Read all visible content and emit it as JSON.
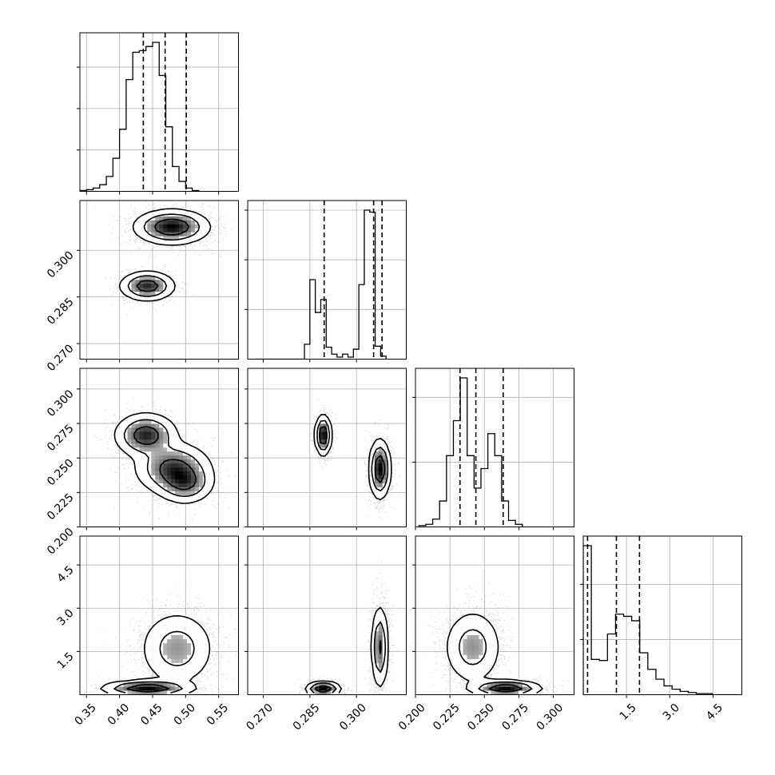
{
  "chart_data": {
    "type": "corner",
    "parameters": 4,
    "grid": true,
    "axes": [
      {
        "range": [
          0.34,
          0.58
        ],
        "ticks": [
          0.35,
          0.4,
          0.45,
          0.5,
          0.55
        ],
        "tick_labels": [
          "0.35",
          "0.40",
          "0.45",
          "0.50",
          "0.55"
        ]
      },
      {
        "range": [
          0.265,
          0.316
        ],
        "ticks": [
          0.27,
          0.285,
          0.3
        ],
        "tick_labels": [
          "0.270",
          "0.285",
          "0.300"
        ]
      },
      {
        "range": [
          0.2,
          0.315
        ],
        "ticks": [
          0.2,
          0.225,
          0.25,
          0.275,
          0.3
        ],
        "tick_labels": [
          "0.200",
          "0.225",
          "0.250",
          "0.275",
          "0.300"
        ]
      },
      {
        "range": [
          0.0,
          5.5
        ],
        "ticks": [
          1.5,
          3.0,
          4.5
        ],
        "tick_labels": [
          "1.5",
          "3.0",
          "4.5"
        ]
      }
    ],
    "histograms": [
      {
        "parameter": 0,
        "bin_start": 0.34,
        "bin_width": 0.01,
        "counts": [
          1,
          2,
          4,
          8,
          18,
          40,
          75,
          135,
          168,
          170,
          175,
          180,
          140,
          78,
          30,
          12,
          4,
          1
        ],
        "quantiles": [
          0.436,
          0.469,
          0.501
        ]
      },
      {
        "parameter": 1,
        "bin_start": 0.2675,
        "bin_width": 0.00175,
        "counts": [
          0,
          0,
          0,
          0,
          0,
          0,
          0,
          0,
          0,
          15,
          80,
          47,
          60,
          12,
          5,
          2,
          5,
          2,
          10,
          75,
          150,
          148,
          13,
          3
        ],
        "quantiles": [
          0.2896,
          0.3055,
          0.3082
        ]
      },
      {
        "parameter": 2,
        "bin_start": 0.2025,
        "bin_width": 0.005,
        "counts": [
          1,
          2,
          6,
          20,
          55,
          82,
          115,
          55,
          30,
          45,
          72,
          55,
          20,
          5,
          2
        ],
        "quantiles": [
          0.2323,
          0.2438,
          0.2636
        ]
      },
      {
        "parameter": 3,
        "bin_start": 0.0,
        "bin_width": 0.28,
        "counts": [
          135,
          32,
          31,
          55,
          73,
          71,
          67,
          38,
          23,
          14,
          8,
          5,
          3,
          2,
          1,
          1,
          0,
          0,
          0
        ],
        "quantiles": [
          0.15,
          1.15,
          1.95
        ]
      }
    ],
    "pairs": [
      {
        "x": 0,
        "y": 1,
        "modes": [
          {
            "cx": 0.479,
            "cy": 0.3075,
            "sx": 0.0265,
            "sy": 0.0026,
            "w": 0.65
          },
          {
            "cx": 0.442,
            "cy": 0.2885,
            "sx": 0.0195,
            "sy": 0.0022,
            "w": 0.35
          }
        ]
      },
      {
        "x": 0,
        "y": 2,
        "modes": [
          {
            "cx": 0.44,
            "cy": 0.2665,
            "sx": 0.022,
            "sy": 0.0075,
            "w": 0.35
          },
          {
            "cx": 0.481,
            "cy": 0.2425,
            "sx": 0.027,
            "sy": 0.0088,
            "w": 0.45
          },
          {
            "cx": 0.5,
            "cy": 0.2315,
            "sx": 0.02,
            "sy": 0.007,
            "w": 0.2
          }
        ]
      },
      {
        "x": 1,
        "y": 2,
        "modes": [
          {
            "cx": 0.2893,
            "cy": 0.2665,
            "sx": 0.0012,
            "sy": 0.0068,
            "w": 0.35
          },
          {
            "cx": 0.3075,
            "cy": 0.242,
            "sx": 0.0016,
            "sy": 0.01,
            "w": 0.65
          }
        ]
      },
      {
        "x": 0,
        "y": 3,
        "modes": [
          {
            "cx": 0.487,
            "cy": 1.6,
            "sx": 0.027,
            "sy": 0.62,
            "w": 0.65
          },
          {
            "cx": 0.442,
            "cy": 0.22,
            "sx": 0.032,
            "sy": 0.13,
            "w": 0.35
          }
        ]
      },
      {
        "x": 1,
        "y": 3,
        "modes": [
          {
            "cx": 0.3075,
            "cy": 1.65,
            "sx": 0.0013,
            "sy": 0.68,
            "w": 0.65
          },
          {
            "cx": 0.2893,
            "cy": 0.2,
            "sx": 0.0026,
            "sy": 0.12,
            "w": 0.35
          }
        ]
      },
      {
        "x": 2,
        "y": 3,
        "modes": [
          {
            "cx": 0.2415,
            "cy": 1.65,
            "sx": 0.01,
            "sy": 0.62,
            "w": 0.65
          },
          {
            "cx": 0.2655,
            "cy": 0.22,
            "sx": 0.012,
            "sy": 0.13,
            "w": 0.35
          }
        ]
      }
    ],
    "contour_levels": [
      0.35,
      0.65,
      0.9
    ],
    "colors": {
      "line": "#000000",
      "grid": "#b0b0b0",
      "points": "#000000",
      "density_dark": "#000000"
    }
  }
}
